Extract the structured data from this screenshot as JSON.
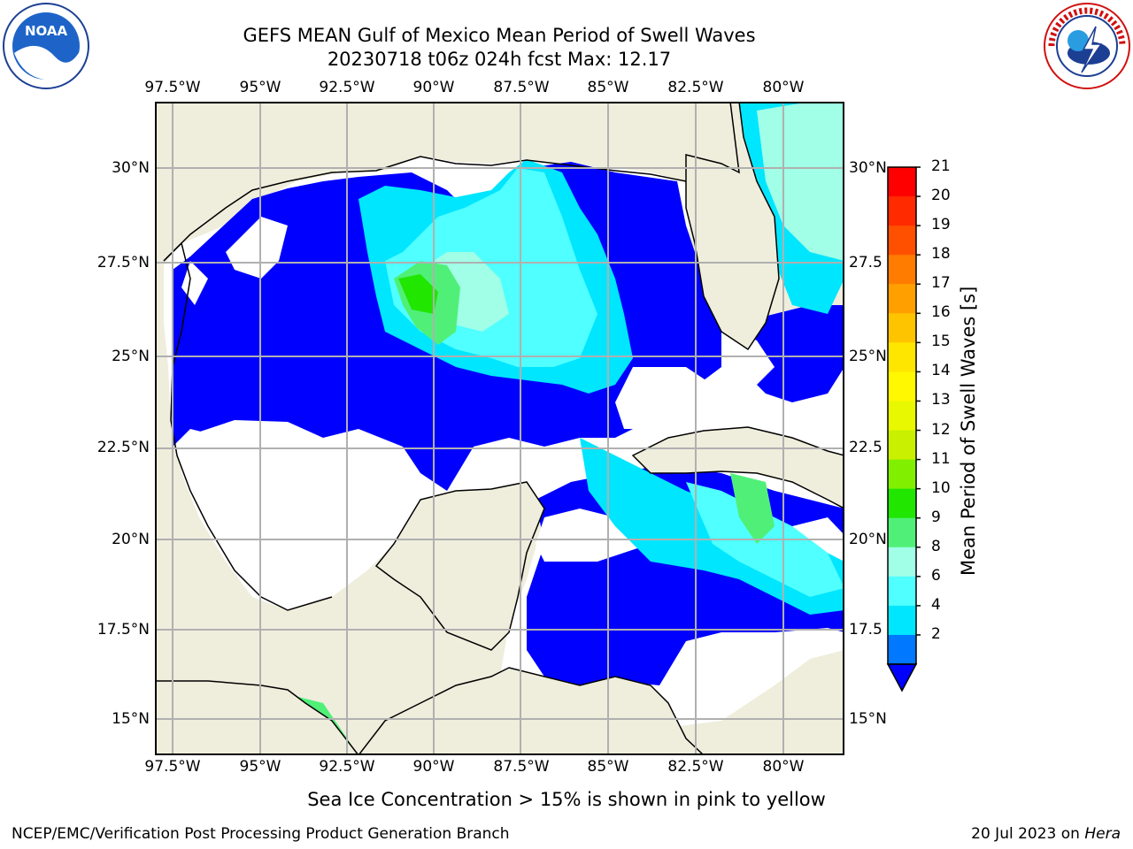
{
  "title": {
    "line1": "GEFS MEAN Gulf of Mexico Mean Period of Swell Waves",
    "line2": "20230718 t06z 024h fcst   Max: 12.17"
  },
  "logos": {
    "left": "noaa-logo",
    "right": "nws-logo",
    "left_text": "NOAA",
    "right_text": "NATIONAL WEATHER SERVICE"
  },
  "map": {
    "lon_labels": [
      "97.5°W",
      "95°W",
      "92.5°W",
      "90°W",
      "87.5°W",
      "85°W",
      "82.5°W",
      "80°W"
    ],
    "lat_labels_left": [
      "30°N",
      "27.5°N",
      "25°N",
      "22.5°N",
      "20°N",
      "17.5°N",
      "15°N"
    ],
    "lat_labels_right": [
      "30°N",
      "27.5",
      "25°N",
      "22.5",
      "20°N",
      "17.5",
      "15°N"
    ],
    "land_color": "#efeddc",
    "grid_color": "#b0b0b0"
  },
  "colorbar": {
    "title": "Mean Period of Swell Waves [s]",
    "labels": [
      "21",
      "20",
      "19",
      "18",
      "17",
      "16",
      "15",
      "14",
      "13",
      "12",
      "11",
      "10",
      "9",
      "8",
      "6",
      "4",
      "2"
    ],
    "colors": [
      "#ff0000",
      "#ff2a00",
      "#ff5000",
      "#ff7c00",
      "#ffa000",
      "#ffc400",
      "#ffe600",
      "#fff800",
      "#e8f800",
      "#c8f000",
      "#80f000",
      "#20e600",
      "#50f078",
      "#a0ffe6",
      "#50ffff",
      "#00e6ff",
      "#0078ff"
    ],
    "under_color": "#0000ff"
  },
  "footnote": "Sea Ice Concentration > 15% is shown in pink to yellow",
  "credit": {
    "left": "NCEP/EMC/Verification Post Processing Product Generation Branch",
    "date": "20 Jul 2023 on ",
    "host": "Hera"
  }
}
